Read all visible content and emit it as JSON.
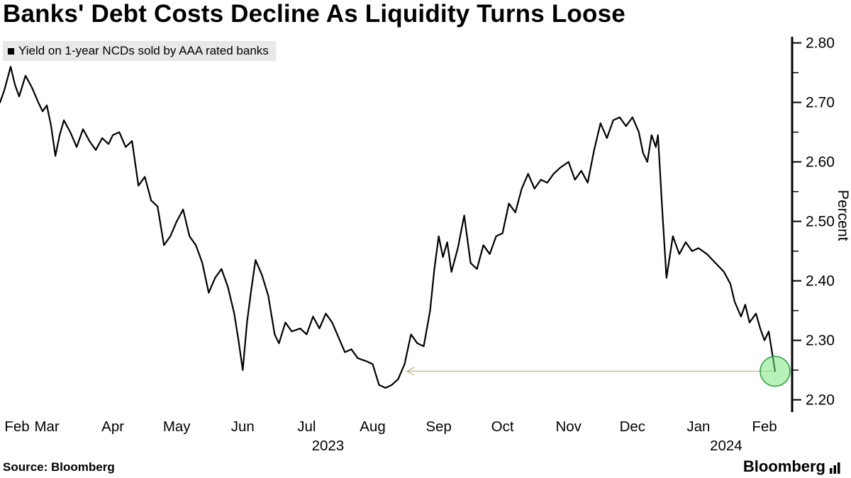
{
  "chart_data": {
    "type": "line",
    "title": "Banks' Debt Costs Decline As Liquidity Turns Loose",
    "legend": "Yield on 1-year NCDs sold by AAA rated banks",
    "ylabel": "Percent",
    "ylim": [
      2.17,
      2.815
    ],
    "y_ticks": [
      2.2,
      2.3,
      2.4,
      2.5,
      2.6,
      2.7,
      2.8
    ],
    "y_minor_ticks": [
      2.25,
      2.35,
      2.45,
      2.55,
      2.65,
      2.75
    ],
    "x_domain_days": [
      0,
      372
    ],
    "x_ticks": [
      {
        "label": "Feb",
        "day": 8
      },
      {
        "label": "Mar",
        "day": 22
      },
      {
        "label": "Apr",
        "day": 53
      },
      {
        "label": "May",
        "day": 83
      },
      {
        "label": "Jun",
        "day": 114
      },
      {
        "label": "Jul",
        "day": 144
      },
      {
        "label": "Aug",
        "day": 175
      },
      {
        "label": "Sep",
        "day": 206
      },
      {
        "label": "Oct",
        "day": 236
      },
      {
        "label": "Nov",
        "day": 267
      },
      {
        "label": "Dec",
        "day": 297
      },
      {
        "label": "Jan",
        "day": 328
      },
      {
        "label": "Feb",
        "day": 359
      }
    ],
    "year_labels": [
      {
        "label": "2023",
        "day": 154
      },
      {
        "label": "2024",
        "day": 341
      }
    ],
    "series": [
      {
        "name": "Yield on 1-year NCDs sold by AAA rated banks",
        "points": [
          [
            0,
            2.7
          ],
          [
            2,
            2.72
          ],
          [
            5,
            2.76
          ],
          [
            7,
            2.73
          ],
          [
            9,
            2.71
          ],
          [
            12,
            2.745
          ],
          [
            15,
            2.725
          ],
          [
            18,
            2.7
          ],
          [
            20,
            2.685
          ],
          [
            22,
            2.695
          ],
          [
            24,
            2.66
          ],
          [
            26,
            2.61
          ],
          [
            28,
            2.645
          ],
          [
            30,
            2.67
          ],
          [
            33,
            2.65
          ],
          [
            36,
            2.625
          ],
          [
            39,
            2.655
          ],
          [
            42,
            2.635
          ],
          [
            45,
            2.62
          ],
          [
            48,
            2.64
          ],
          [
            51,
            2.63
          ],
          [
            53,
            2.645
          ],
          [
            56,
            2.65
          ],
          [
            59,
            2.625
          ],
          [
            62,
            2.635
          ],
          [
            65,
            2.56
          ],
          [
            68,
            2.575
          ],
          [
            71,
            2.535
          ],
          [
            74,
            2.525
          ],
          [
            77,
            2.46
          ],
          [
            80,
            2.475
          ],
          [
            83,
            2.5
          ],
          [
            86,
            2.52
          ],
          [
            89,
            2.475
          ],
          [
            92,
            2.46
          ],
          [
            95,
            2.43
          ],
          [
            98,
            2.38
          ],
          [
            101,
            2.405
          ],
          [
            104,
            2.42
          ],
          [
            107,
            2.39
          ],
          [
            110,
            2.345
          ],
          [
            112,
            2.3
          ],
          [
            114,
            2.25
          ],
          [
            116,
            2.33
          ],
          [
            118,
            2.385
          ],
          [
            120,
            2.435
          ],
          [
            123,
            2.41
          ],
          [
            126,
            2.375
          ],
          [
            129,
            2.31
          ],
          [
            131,
            2.295
          ],
          [
            134,
            2.33
          ],
          [
            137,
            2.315
          ],
          [
            141,
            2.32
          ],
          [
            144,
            2.31
          ],
          [
            147,
            2.34
          ],
          [
            150,
            2.32
          ],
          [
            153,
            2.345
          ],
          [
            156,
            2.33
          ],
          [
            159,
            2.305
          ],
          [
            162,
            2.28
          ],
          [
            165,
            2.285
          ],
          [
            168,
            2.27
          ],
          [
            172,
            2.265
          ],
          [
            175,
            2.26
          ],
          [
            178,
            2.225
          ],
          [
            181,
            2.22
          ],
          [
            184,
            2.225
          ],
          [
            187,
            2.235
          ],
          [
            190,
            2.26
          ],
          [
            193,
            2.31
          ],
          [
            196,
            2.295
          ],
          [
            199,
            2.29
          ],
          [
            202,
            2.35
          ],
          [
            204,
            2.42
          ],
          [
            206,
            2.475
          ],
          [
            208,
            2.44
          ],
          [
            210,
            2.465
          ],
          [
            212,
            2.415
          ],
          [
            215,
            2.455
          ],
          [
            218,
            2.51
          ],
          [
            221,
            2.43
          ],
          [
            224,
            2.42
          ],
          [
            227,
            2.46
          ],
          [
            230,
            2.445
          ],
          [
            233,
            2.475
          ],
          [
            236,
            2.48
          ],
          [
            239,
            2.53
          ],
          [
            242,
            2.515
          ],
          [
            245,
            2.555
          ],
          [
            248,
            2.58
          ],
          [
            251,
            2.555
          ],
          [
            254,
            2.57
          ],
          [
            257,
            2.565
          ],
          [
            260,
            2.58
          ],
          [
            263,
            2.59
          ],
          [
            267,
            2.6
          ],
          [
            270,
            2.57
          ],
          [
            273,
            2.585
          ],
          [
            276,
            2.565
          ],
          [
            279,
            2.62
          ],
          [
            282,
            2.665
          ],
          [
            285,
            2.64
          ],
          [
            288,
            2.67
          ],
          [
            291,
            2.675
          ],
          [
            294,
            2.66
          ],
          [
            297,
            2.675
          ],
          [
            300,
            2.65
          ],
          [
            302,
            2.615
          ],
          [
            304,
            2.6
          ],
          [
            306,
            2.645
          ],
          [
            308,
            2.625
          ],
          [
            309,
            2.645
          ],
          [
            311,
            2.52
          ],
          [
            313,
            2.405
          ],
          [
            316,
            2.475
          ],
          [
            319,
            2.445
          ],
          [
            322,
            2.465
          ],
          [
            325,
            2.45
          ],
          [
            328,
            2.455
          ],
          [
            332,
            2.445
          ],
          [
            336,
            2.43
          ],
          [
            340,
            2.415
          ],
          [
            343,
            2.395
          ],
          [
            345,
            2.365
          ],
          [
            348,
            2.34
          ],
          [
            350,
            2.36
          ],
          [
            352,
            2.33
          ],
          [
            355,
            2.345
          ],
          [
            357,
            2.32
          ],
          [
            359,
            2.3
          ],
          [
            361,
            2.315
          ],
          [
            363,
            2.27
          ],
          [
            364,
            2.248
          ]
        ]
      }
    ],
    "marker": {
      "day": 364,
      "value": 2.248,
      "radius": 21
    },
    "annotation_arrow": {
      "start_day": 191,
      "y": 2.248
    },
    "colors": {
      "line": "#000000",
      "marker_fill": "#7fe87f",
      "marker_stroke": "#2e9e43",
      "arrow": "#c9b98a",
      "legend_bg": "#e8e8e8"
    }
  },
  "footer": {
    "source": "Source: Bloomberg",
    "brand": "Bloomberg"
  }
}
